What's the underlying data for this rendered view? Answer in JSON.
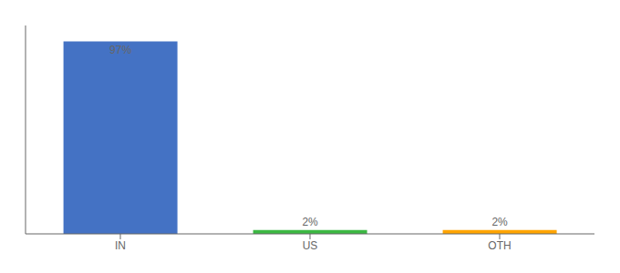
{
  "chart_data": {
    "type": "bar",
    "categories": [
      "IN",
      "US",
      "OTH"
    ],
    "values": [
      97,
      2,
      2
    ],
    "value_labels": [
      "97%",
      "2%",
      "2%"
    ],
    "colors": [
      "#4472C4",
      "#3CB843",
      "#FFA500"
    ],
    "ylim": [
      0,
      105
    ],
    "data_labels": true,
    "tick_labels": "x",
    "grid": false
  }
}
